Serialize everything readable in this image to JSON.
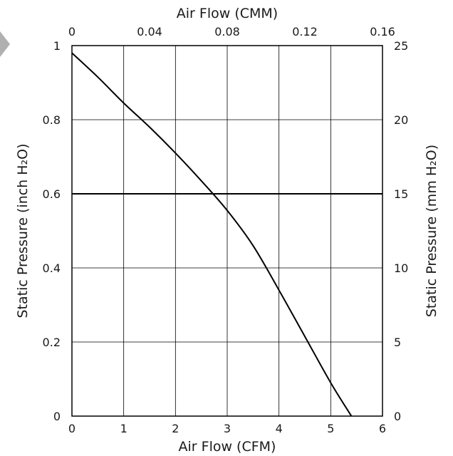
{
  "chart_data": {
    "type": "line",
    "xlabel_bottom": "Air Flow (CFM)",
    "xlabel_top": "Air Flow (CMM)",
    "ylabel_left": "Static Pressure (inch H₂O)",
    "ylabel_right": "Static Pressure (mm H₂O)",
    "xlim": [
      0,
      6
    ],
    "ylim": [
      0,
      1
    ],
    "xlim_top": [
      0,
      0.16
    ],
    "ylim_right": [
      0,
      25
    ],
    "bottom_ticks": [
      "0",
      "1",
      "2",
      "3",
      "4",
      "5",
      "6"
    ],
    "top_ticks": [
      "0",
      "0.04",
      "0.08",
      "0.12",
      "0.16"
    ],
    "left_ticks": [
      "0",
      "0.2",
      "0.4",
      "0.6",
      "0.8",
      "1"
    ],
    "right_ticks": [
      "0",
      "5",
      "10",
      "15",
      "20",
      "25"
    ],
    "grid": true,
    "series": [
      {
        "x": [
          0,
          0.5,
          1.0,
          1.5,
          2.0,
          2.5,
          3.0,
          3.5,
          4.0,
          4.5,
          5.0,
          5.4
        ],
        "values": [
          0.98,
          0.915,
          0.845,
          0.78,
          0.71,
          0.635,
          0.555,
          0.46,
          0.34,
          0.215,
          0.09,
          0
        ]
      }
    ],
    "reference_lines": [
      {
        "axis": "y",
        "value": 0.6
      }
    ],
    "colors": {
      "line": "#000000",
      "grid": "#000000",
      "marker": "#b0b0b0"
    }
  }
}
